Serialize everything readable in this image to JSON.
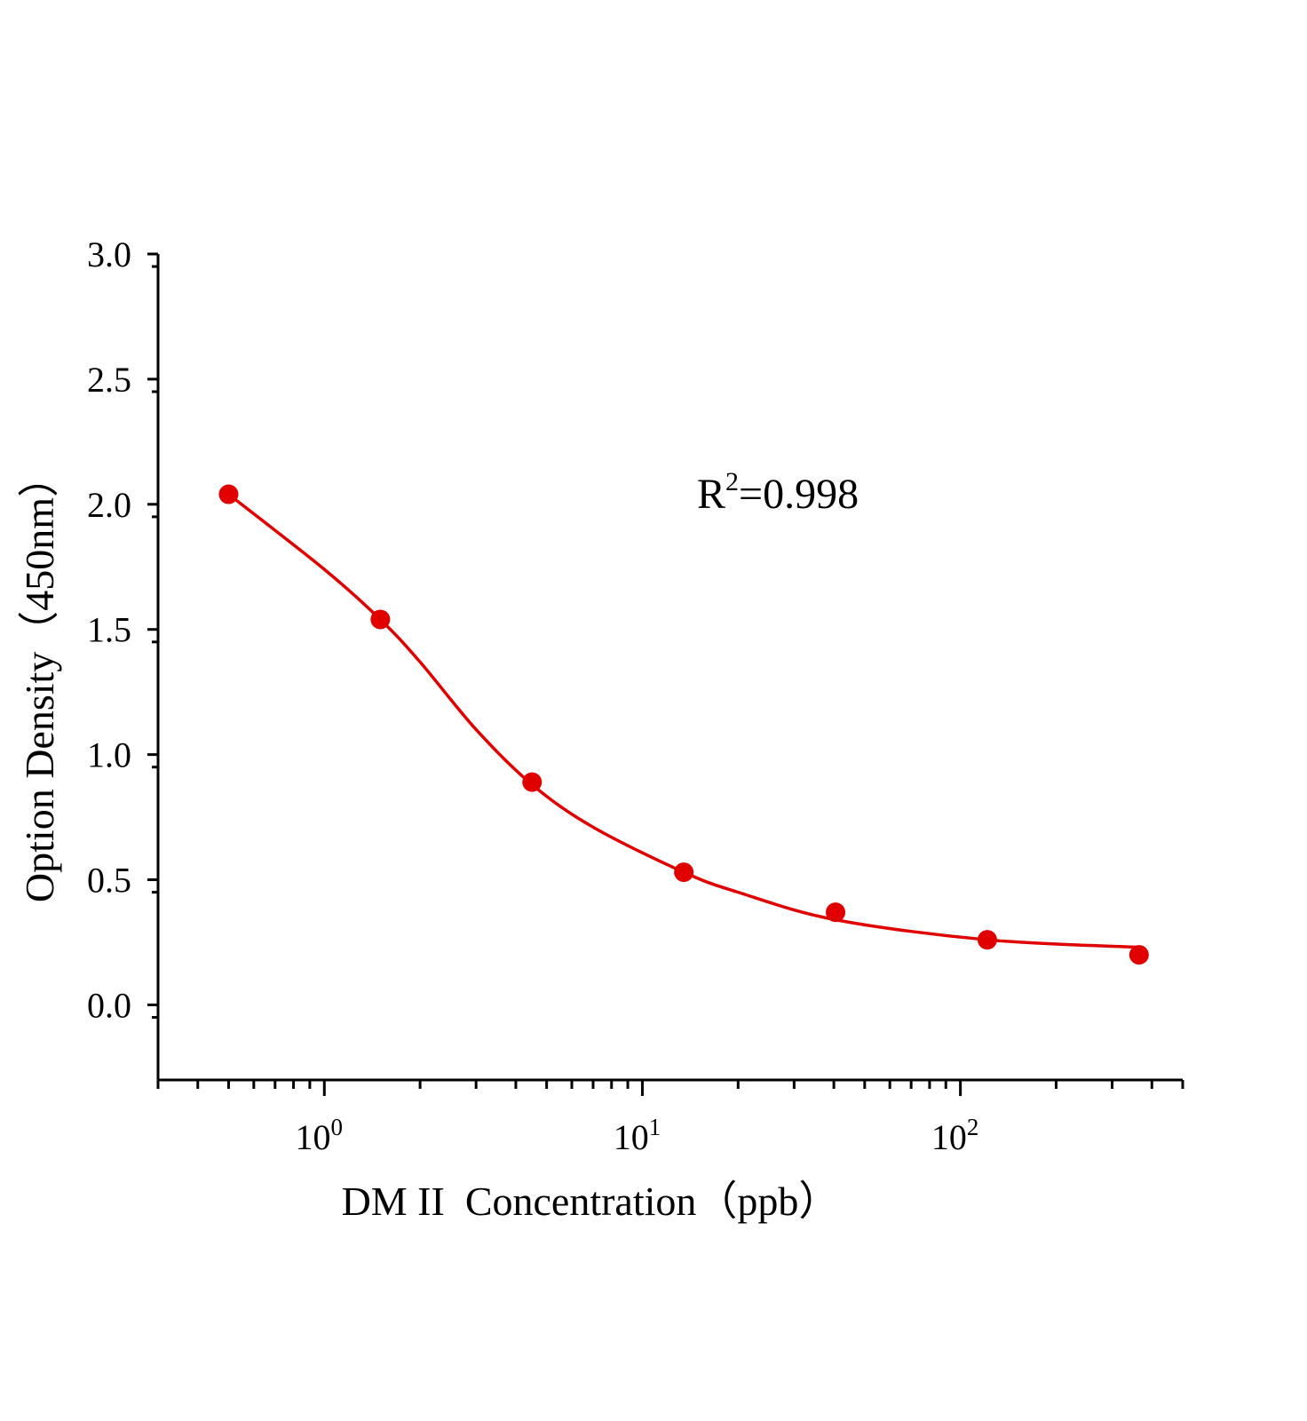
{
  "chart_data": {
    "type": "scatter",
    "xlabel": "DM II  Concentration（ppb）",
    "ylabel": "Option Density（450nm）",
    "annotation": {
      "base": "R",
      "sup": "2",
      "rest": "=0.998"
    },
    "x_scale": "log",
    "xlim": [
      0.3,
      500
    ],
    "ylim": [
      -0.3,
      3.0
    ],
    "x_ticks": [
      {
        "base": "10",
        "exp": "0",
        "value": 1
      },
      {
        "base": "10",
        "exp": "1",
        "value": 10
      },
      {
        "base": "10",
        "exp": "2",
        "value": 100
      }
    ],
    "y_ticks": [
      "0.0",
      "0.5",
      "1.0",
      "1.5",
      "2.0",
      "2.5",
      "3.0"
    ],
    "y_tick_values": [
      0,
      0.5,
      1.0,
      1.5,
      2.0,
      2.5,
      3.0
    ],
    "grid": false,
    "color": "#e00000",
    "points": {
      "x": [
        0.5,
        1.5,
        4.5,
        13.5,
        40.5,
        121.5,
        364.5
      ],
      "y": [
        2.04,
        1.54,
        0.89,
        0.53,
        0.37,
        0.26,
        0.2
      ]
    },
    "fit_curve": {
      "x": [
        0.5,
        1.0,
        1.5,
        2.0,
        3.0,
        4.5,
        7.0,
        13.5,
        20,
        40.5,
        121.5,
        364.5
      ],
      "y": [
        2.04,
        1.74,
        1.54,
        1.37,
        1.1,
        0.88,
        0.71,
        0.53,
        0.45,
        0.34,
        0.26,
        0.23
      ]
    }
  }
}
